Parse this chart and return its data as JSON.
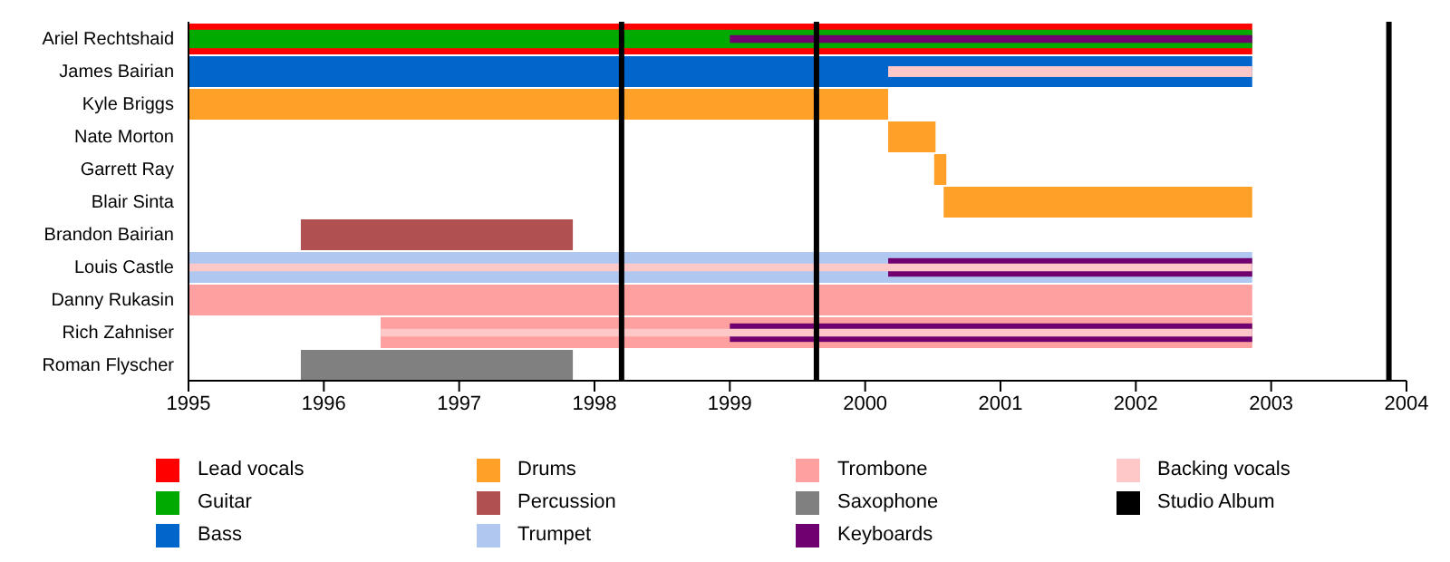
{
  "chart_data": {
    "type": "bar",
    "orientation": "horizontal",
    "categories": [
      "Ariel Rechtshaid",
      "James Bairian",
      "Kyle Briggs",
      "Nate Morton",
      "Garrett Ray",
      "Blair Sinta",
      "Brandon Bairian",
      "Louis Castle",
      "Danny Rukasin",
      "Rich Zahniser",
      "Roman Flyscher"
    ],
    "series": [
      {
        "name": "Lead vocals",
        "color": "#ff0000",
        "base": [
          1995,
          null,
          null,
          null,
          null,
          null,
          null,
          null,
          null,
          null,
          null
        ],
        "values": [
          7.86,
          null,
          null,
          null,
          null,
          null,
          null,
          null,
          null,
          null,
          null
        ]
      },
      {
        "name": "Guitar",
        "color": "#00aa00",
        "base": [
          1995,
          null,
          null,
          null,
          null,
          null,
          null,
          null,
          null,
          null,
          null
        ],
        "values": [
          7.86,
          null,
          null,
          null,
          null,
          null,
          null,
          null,
          null,
          null,
          null
        ]
      },
      {
        "name": "Bass",
        "color": "#0066cc",
        "base": [
          null,
          1995,
          null,
          null,
          null,
          null,
          null,
          null,
          null,
          null,
          null
        ],
        "values": [
          null,
          7.86,
          null,
          null,
          null,
          null,
          null,
          null,
          null,
          null,
          null
        ]
      },
      {
        "name": "Drums",
        "color": "#ffa028",
        "base": [
          null,
          null,
          1995,
          2000.17,
          2000.51,
          2000.58,
          null,
          null,
          null,
          null,
          null
        ],
        "values": [
          null,
          null,
          5.17,
          0.35,
          0.09,
          2.28,
          null,
          null,
          null,
          null,
          null
        ]
      },
      {
        "name": "Percussion",
        "color": "#b05050",
        "base": [
          null,
          null,
          null,
          null,
          null,
          null,
          1995.83,
          null,
          null,
          null,
          null
        ],
        "values": [
          null,
          null,
          null,
          null,
          null,
          null,
          2.01,
          null,
          null,
          null,
          null
        ]
      },
      {
        "name": "Trumpet",
        "color": "#b0c8f0",
        "base": [
          null,
          null,
          null,
          null,
          null,
          null,
          null,
          1995,
          null,
          null,
          null
        ],
        "values": [
          null,
          null,
          null,
          null,
          null,
          null,
          null,
          7.86,
          null,
          null,
          null
        ]
      },
      {
        "name": "Trombone",
        "color": "#ffa0a0",
        "base": [
          null,
          null,
          null,
          null,
          null,
          null,
          null,
          null,
          1995,
          1996.42,
          null
        ],
        "values": [
          null,
          null,
          null,
          null,
          null,
          null,
          null,
          null,
          7.86,
          6.44,
          null
        ]
      },
      {
        "name": "Saxophone",
        "color": "#808080",
        "base": [
          null,
          null,
          null,
          null,
          null,
          null,
          null,
          null,
          null,
          null,
          1995.83
        ],
        "values": [
          null,
          null,
          null,
          null,
          null,
          null,
          null,
          null,
          null,
          null,
          2.01
        ]
      },
      {
        "name": "Keyboards",
        "color": "#700070",
        "base": [
          1999,
          null,
          null,
          null,
          null,
          null,
          null,
          2000.17,
          null,
          1999,
          null
        ],
        "values": [
          3.86,
          null,
          null,
          null,
          null,
          null,
          null,
          2.69,
          null,
          3.86,
          null
        ]
      },
      {
        "name": "Backing vocals",
        "color": "#ffc8c8",
        "base": [
          null,
          2000.17,
          null,
          null,
          null,
          null,
          null,
          1995,
          null,
          1996.42,
          null
        ],
        "values": [
          null,
          2.69,
          null,
          null,
          null,
          null,
          null,
          7.86,
          null,
          6.44,
          null
        ]
      }
    ],
    "xlim": [
      1995,
      2004
    ],
    "xticks": [
      1995,
      1996,
      1997,
      1998,
      1999,
      2000,
      2001,
      2002,
      2003,
      2004
    ],
    "ref_lines": [
      {
        "axis": "x",
        "value": 1998.2,
        "label": "Studio Album",
        "color": "#000000"
      },
      {
        "axis": "x",
        "value": 1999.64,
        "color": "#000000"
      },
      {
        "axis": "x",
        "value": 2003.87,
        "color": "#000000"
      }
    ],
    "legend": "bottom",
    "grid": false
  }
}
